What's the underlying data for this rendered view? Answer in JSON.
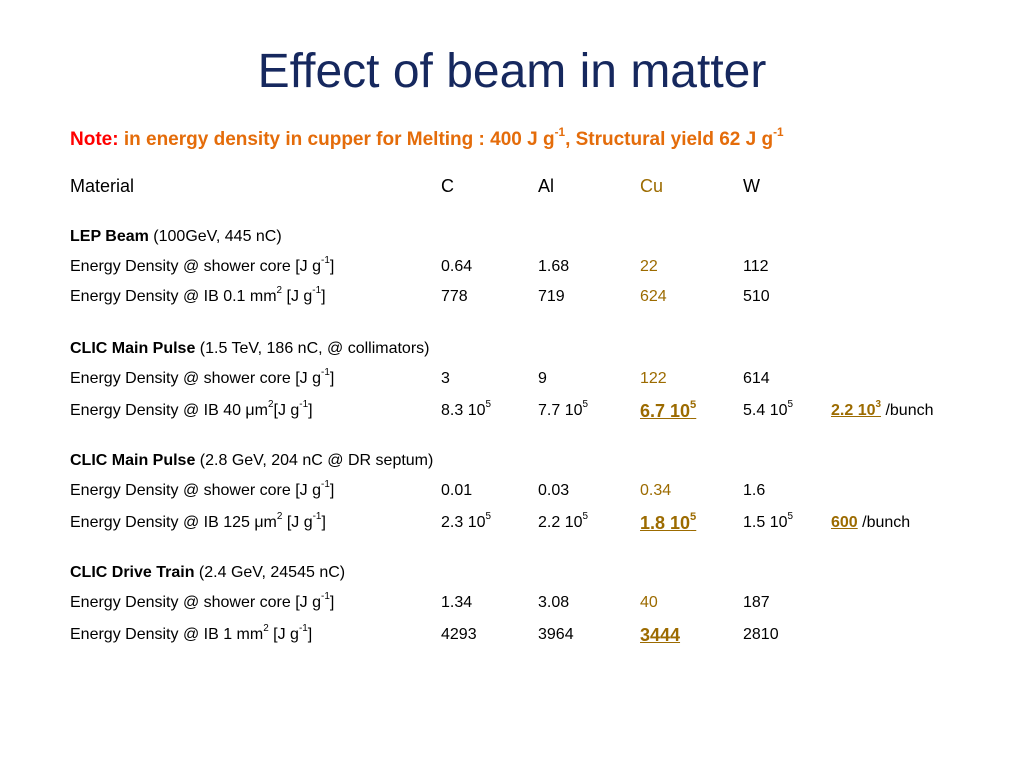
{
  "title": "Effect of beam in matter",
  "note": {
    "lead": "Note:",
    "text": " in energy density in cupper for Melting : 400 J g",
    "sup1": "-1",
    "text2": ",  Structural yield 62 J g",
    "sup2": "-1"
  },
  "header": {
    "material": "Material",
    "c": "C",
    "al": "Al",
    "cu": "Cu",
    "w": "W"
  },
  "sections": [
    {
      "name": "LEP Beam",
      "detail": " (100GeV, 445 nC)",
      "rows": [
        {
          "label": "Energy Density @ shower core [J g",
          "label_sup": "-1",
          "label_end": "]",
          "c": "0.64",
          "al": "1.68",
          "cu": "22",
          "w": "112"
        },
        {
          "label": "Energy Density @ IB 0.1 mm",
          "label_sup2": "2",
          "label_mid": " [J g",
          "label_sup": "-1",
          "label_end": "]",
          "c": "778",
          "al": "719",
          "cu": "624",
          "w": "510"
        }
      ]
    },
    {
      "name": "CLIC Main Pulse",
      "detail": " (1.5 TeV, 186 nC, @ collimators)",
      "rows": [
        {
          "label": "Energy Density @ shower core [J g",
          "label_sup": "-1",
          "label_end": "]",
          "c": "3",
          "al": "9",
          "cu": "122",
          "w": "614"
        },
        {
          "label": "Energy Density @ IB 40 μm",
          "label_sup2": "2",
          "label_mid": "[J g",
          "label_sup": "-1",
          "label_end": "]",
          "c": "8.3 10",
          "c_sup": "5",
          "al": "7.7 10",
          "al_sup": "5",
          "cu": "6.7 10",
          "cu_sup": "5",
          "w": "5.4 10",
          "w_sup": "5",
          "extra": "2.2 10",
          "extra_sup": "3",
          "extra_unit": " /bunch"
        }
      ]
    },
    {
      "name": "CLIC Main Pulse",
      "detail": " (2.8 GeV, 204 nC @ DR septum)",
      "rows": [
        {
          "label": "Energy Density @ shower core [J g",
          "label_sup": "-1",
          "label_end": "]",
          "c": "0.01",
          "al": "0.03",
          "cu": "0.34",
          "w": "1.6"
        },
        {
          "label": "Energy Density @ IB 125 μm",
          "label_sup2": "2",
          "label_mid": " [J g",
          "label_sup": "-1",
          "label_end": "]",
          "c": "2.3 10",
          "c_sup": "5",
          "al": "2.2 10",
          "al_sup": "5",
          "cu": "1.8 10",
          "cu_sup": "5",
          "w": "1.5 10",
          "w_sup": "5",
          "extra": "600",
          "extra_unit": " /bunch"
        }
      ]
    },
    {
      "name": "CLIC Drive Train",
      "detail": " (2.4 GeV, 24545 nC)",
      "rows": [
        {
          "label": "Energy Density @ shower core [J g",
          "label_sup": "-1",
          "label_end": "]",
          "c": "1.34",
          "al": "3.08",
          "cu": "40",
          "w": "187"
        },
        {
          "label": "Energy Density @ IB 1 mm",
          "label_sup2": "2",
          "label_mid": " [J g",
          "label_sup": "-1",
          "label_end": "]",
          "c": "4293",
          "al": "3964",
          "cu": "3444",
          "w": "2810"
        }
      ]
    }
  ]
}
